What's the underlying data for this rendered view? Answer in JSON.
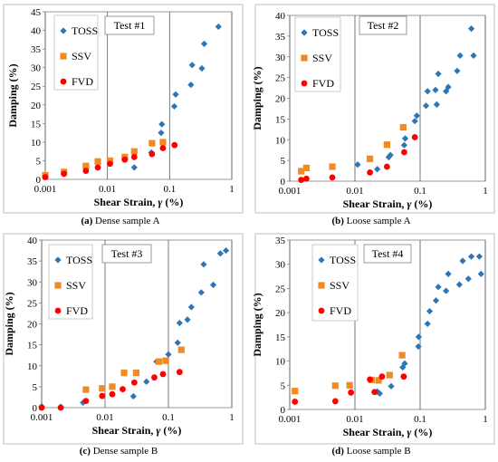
{
  "chart_data": [
    {
      "type": "scatter",
      "annotation": "Test #1",
      "caption_letter": "(a)",
      "caption": "Dense sample A",
      "xlabel_text": "Shear Strain, ",
      "xlabel_symbol": "γ",
      "xlabel_unit": " (%)",
      "ylabel": "Damping (%)",
      "x_scale": "log",
      "xlim": [
        0.001,
        1
      ],
      "xticks": [
        "0.001",
        "0.01",
        "0.1",
        "1"
      ],
      "ylim": [
        0,
        45
      ],
      "yticks": [
        "0",
        "5",
        "10",
        "15",
        "20",
        "25",
        "30",
        "35",
        "40",
        "45"
      ],
      "legend_position": "top-left",
      "series": [
        {
          "name": "TOSS",
          "color": "#2e75b6",
          "marker": "diamond",
          "x": [
            0.027,
            0.051,
            0.073,
            0.075,
            0.119,
            0.125,
            0.22,
            0.23,
            0.33,
            0.36,
            0.61
          ],
          "y": [
            3.2,
            7.2,
            12.5,
            14.8,
            19.6,
            22.8,
            25.4,
            30.7,
            29.8,
            36.4,
            41.0
          ]
        },
        {
          "name": "SSV",
          "color": "#f08a24",
          "marker": "square",
          "x": [
            0.001,
            0.002,
            0.0045,
            0.007,
            0.011,
            0.019,
            0.027,
            0.052,
            0.078
          ],
          "y": [
            1.1,
            2.0,
            3.6,
            4.8,
            5.0,
            6.0,
            7.5,
            9.7,
            10.0
          ]
        },
        {
          "name": "FVD",
          "color": "#ff0000",
          "marker": "circle",
          "x": [
            0.001,
            0.002,
            0.0045,
            0.007,
            0.011,
            0.019,
            0.027,
            0.052,
            0.078,
            0.12
          ],
          "y": [
            0.6,
            1.5,
            2.3,
            3.2,
            4.2,
            5.3,
            6.0,
            6.8,
            8.4,
            9.2
          ]
        }
      ]
    },
    {
      "type": "scatter",
      "annotation": "Test #2",
      "caption_letter": "(b)",
      "caption": "Loose sample A",
      "xlabel_text": "Shear Strain, ",
      "xlabel_symbol": "γ",
      "xlabel_unit": " (%)",
      "ylabel": "Damping (%)",
      "x_scale": "log",
      "xlim": [
        0.001,
        1
      ],
      "xticks": [
        "0.001",
        "0.01",
        "0.1",
        "1"
      ],
      "ylim": [
        0,
        40
      ],
      "yticks": [
        "0",
        "5",
        "10",
        "15",
        "20",
        "25",
        "30",
        "35",
        "40"
      ],
      "legend_position": "top-left",
      "series": [
        {
          "name": "TOSS",
          "color": "#2e75b6",
          "marker": "diamond",
          "x": [
            0.011,
            0.022,
            0.033,
            0.035,
            0.057,
            0.059,
            0.083,
            0.089,
            0.123,
            0.13,
            0.172,
            0.18,
            0.19,
            0.25,
            0.27,
            0.37,
            0.41,
            0.61,
            0.66
          ],
          "y": [
            4.0,
            2.9,
            5.8,
            6.3,
            8.7,
            10.3,
            14.5,
            15.8,
            18.2,
            21.7,
            22.0,
            18.5,
            25.9,
            21.7,
            22.7,
            26.6,
            30.3,
            36.8,
            30.3
          ]
        },
        {
          "name": "SSV",
          "color": "#f08a24",
          "marker": "square",
          "x": [
            0.0015,
            0.0018,
            0.0045,
            0.017,
            0.031,
            0.055
          ],
          "y": [
            2.4,
            3.2,
            3.5,
            5.4,
            8.8,
            13.0
          ]
        },
        {
          "name": "FVD",
          "color": "#ff0000",
          "marker": "circle",
          "x": [
            0.0015,
            0.0018,
            0.0045,
            0.017,
            0.031,
            0.057,
            0.083
          ],
          "y": [
            0.3,
            0.6,
            0.9,
            2.1,
            3.5,
            7.0,
            10.6
          ]
        }
      ]
    },
    {
      "type": "scatter",
      "annotation": "Test #3",
      "caption_letter": "(c)",
      "caption": "Dense sample B",
      "xlabel_text": "Shear Strain, ",
      "xlabel_symbol": "γ",
      "xlabel_unit": " (%)",
      "ylabel": "Damping (%)",
      "x_scale": "log",
      "xlim": [
        0.001,
        1
      ],
      "xticks": [
        "0.001",
        "0.01",
        "0.1",
        "1"
      ],
      "ylim": [
        0,
        40
      ],
      "yticks": [
        "0",
        "5",
        "10",
        "15",
        "20",
        "25",
        "30",
        "35",
        "40"
      ],
      "legend_position": "top-left",
      "series": [
        {
          "name": "TOSS",
          "color": "#2e75b6",
          "marker": "diamond",
          "x": [
            0.001,
            0.002,
            0.0045,
            0.028,
            0.045,
            0.065,
            0.1,
            0.14,
            0.15,
            0.2,
            0.23,
            0.33,
            0.36,
            0.51,
            0.66,
            0.81
          ],
          "y": [
            0.3,
            0.2,
            1.2,
            2.7,
            6.2,
            11.0,
            12.7,
            15.5,
            20.2,
            21.0,
            24.0,
            27.5,
            34.2,
            29.3,
            36.8,
            37.5
          ]
        },
        {
          "name": "SSV",
          "color": "#f08a24",
          "marker": "square",
          "x": [
            0.005,
            0.009,
            0.013,
            0.02,
            0.031,
            0.071,
            0.091,
            0.16
          ],
          "y": [
            4.3,
            4.6,
            5.0,
            8.3,
            8.3,
            11.0,
            11.2,
            13.8
          ]
        },
        {
          "name": "FVD",
          "color": "#ff0000",
          "marker": "circle",
          "x": [
            0.001,
            0.002,
            0.005,
            0.009,
            0.013,
            0.019,
            0.029,
            0.06,
            0.082,
            0.15
          ],
          "y": [
            0.0,
            0.0,
            1.6,
            2.8,
            3.2,
            4.4,
            6.0,
            7.2,
            8.0,
            8.5
          ]
        }
      ]
    },
    {
      "type": "scatter",
      "annotation": "Test #4",
      "caption_letter": "(d)",
      "caption": "Loose sample B",
      "xlabel_text": "Shear Strain, ",
      "xlabel_symbol": "γ",
      "xlabel_unit": " (%)",
      "ylabel": "Damping (%)",
      "x_scale": "log",
      "xlim": [
        0.001,
        1
      ],
      "xticks": [
        "0.001",
        "0.01",
        "0.1",
        "1"
      ],
      "ylim": [
        0,
        35
      ],
      "yticks": [
        "0",
        "5",
        "10",
        "15",
        "20",
        "25",
        "30",
        "35"
      ],
      "legend_position": "top-left",
      "series": [
        {
          "name": "TOSS",
          "color": "#2e75b6",
          "marker": "diamond",
          "x": [
            0.022,
            0.024,
            0.036,
            0.054,
            0.058,
            0.094,
            0.095,
            0.13,
            0.14,
            0.175,
            0.19,
            0.25,
            0.27,
            0.4,
            0.45,
            0.55,
            0.61,
            0.81,
            0.86
          ],
          "y": [
            3.7,
            3.3,
            4.8,
            8.7,
            9.5,
            13.0,
            15.0,
            17.7,
            20.3,
            22.5,
            25.3,
            24.5,
            28.0,
            25.8,
            30.7,
            27.0,
            31.6,
            31.6,
            28.0
          ]
        },
        {
          "name": "SSV",
          "color": "#f08a24",
          "marker": "square",
          "x": [
            0.0012,
            0.005,
            0.0083,
            0.018,
            0.023,
            0.034,
            0.053
          ],
          "y": [
            3.8,
            4.9,
            5.0,
            6.1,
            6.0,
            7.1,
            11.2
          ]
        },
        {
          "name": "FVD",
          "color": "#ff0000",
          "marker": "circle",
          "x": [
            0.0012,
            0.005,
            0.0087,
            0.017,
            0.02,
            0.026,
            0.056
          ],
          "y": [
            1.6,
            1.7,
            3.5,
            6.2,
            3.6,
            6.8,
            6.8
          ]
        }
      ]
    }
  ]
}
